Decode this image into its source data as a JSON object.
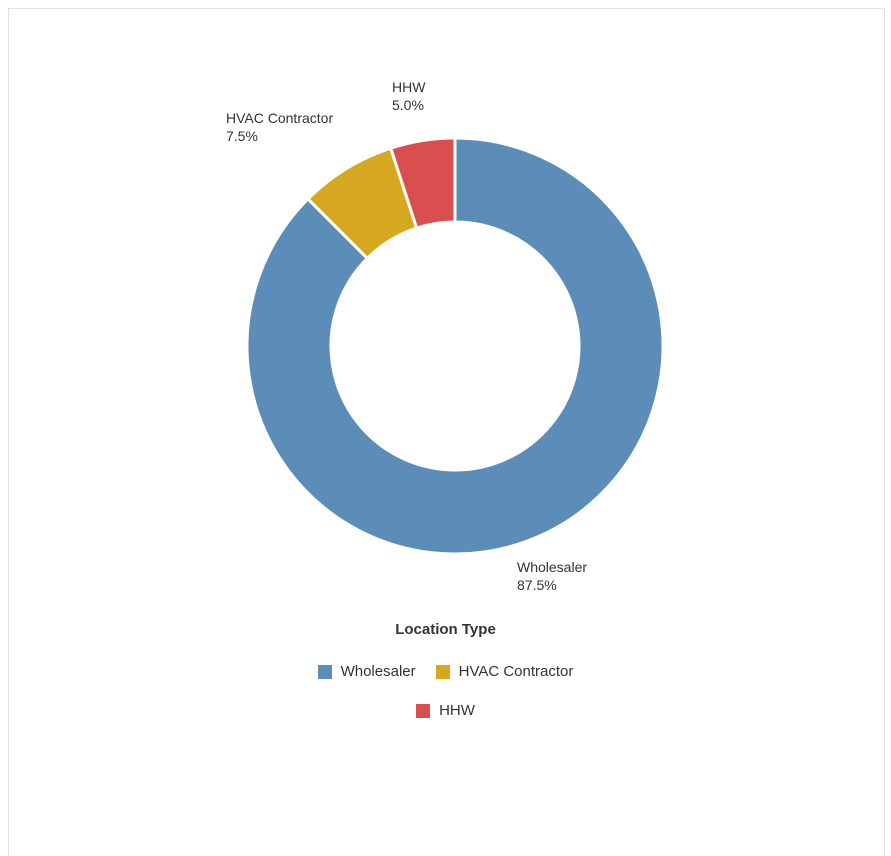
{
  "chart_data": {
    "type": "pie",
    "style": "donut",
    "title": "",
    "legend_title": "Location Type",
    "legend_position": "bottom",
    "slices": [
      {
        "label": "Wholesaler",
        "value": 87.5,
        "value_label": "87.5%",
        "color": "#5b8db8"
      },
      {
        "label": "HVAC Contractor",
        "value": 7.5,
        "value_label": "7.5%",
        "color": "#d6a820"
      },
      {
        "label": "HHW",
        "value": 5.0,
        "value_label": "5.0%",
        "color": "#d94f4f"
      }
    ]
  }
}
